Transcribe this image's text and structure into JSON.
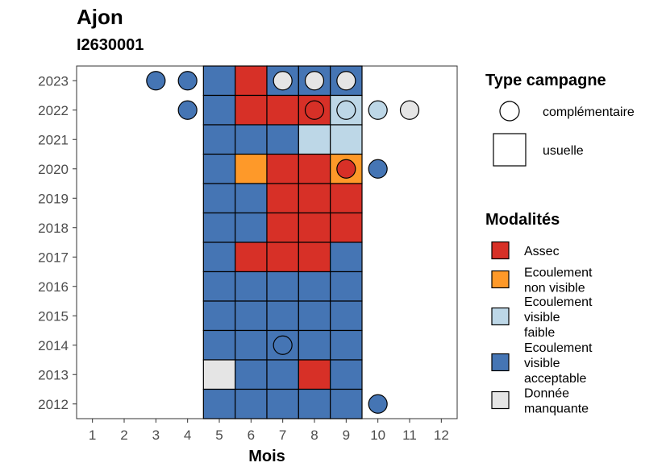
{
  "chart_data": {
    "type": "heatmap",
    "title": "Ajon",
    "subtitle": "I2630001",
    "xlabel": "Mois",
    "ylabel": "",
    "x_ticks": [
      1,
      2,
      3,
      4,
      5,
      6,
      7,
      8,
      9,
      10,
      11,
      12
    ],
    "y_ticks": [
      2012,
      2013,
      2014,
      2015,
      2016,
      2017,
      2018,
      2019,
      2020,
      2021,
      2022,
      2023
    ],
    "xlim": [
      0.5,
      12.5
    ],
    "ylim": [
      2011.5,
      2023.5
    ],
    "grid": false,
    "legend_placement": "right",
    "legends": [
      {
        "title": "Type campagne",
        "entries": [
          {
            "label": "complémentaire",
            "shape": "circle"
          },
          {
            "label": "usuelle",
            "shape": "square"
          }
        ]
      },
      {
        "title": "Modalités",
        "entries": [
          {
            "label": [
              "Assec"
            ],
            "color": "#d73027"
          },
          {
            "label": [
              "Ecoulement",
              "non visible"
            ],
            "color": "#fe9929"
          },
          {
            "label": [
              "Ecoulement",
              "visible",
              "faible"
            ],
            "color": "#bdd7e7"
          },
          {
            "label": [
              "Ecoulement",
              "visible",
              "acceptable"
            ],
            "color": "#4575b4"
          },
          {
            "label": [
              "Donnée",
              "manquante"
            ],
            "color": "#e5e5e5"
          }
        ]
      }
    ],
    "categories": [
      "Assec",
      "Ecoulement non visible",
      "Ecoulement visible faible",
      "Ecoulement visible acceptable",
      "Donnée manquante"
    ],
    "colors": {
      "Assec": "#d73027",
      "Ecoulement non visible": "#fe9929",
      "Ecoulement visible faible": "#bdd7e7",
      "Ecoulement visible acceptable": "#4575b4",
      "Donnée manquante": "#e5e5e5"
    },
    "usuelle": [
      {
        "year": 2023,
        "month": 5,
        "value": "Ecoulement visible acceptable"
      },
      {
        "year": 2023,
        "month": 6,
        "value": "Assec"
      },
      {
        "year": 2023,
        "month": 7,
        "value": "Ecoulement visible acceptable"
      },
      {
        "year": 2023,
        "month": 8,
        "value": "Ecoulement visible acceptable"
      },
      {
        "year": 2023,
        "month": 9,
        "value": "Ecoulement visible acceptable"
      },
      {
        "year": 2022,
        "month": 5,
        "value": "Ecoulement visible acceptable"
      },
      {
        "year": 2022,
        "month": 6,
        "value": "Assec"
      },
      {
        "year": 2022,
        "month": 7,
        "value": "Assec"
      },
      {
        "year": 2022,
        "month": 8,
        "value": "Assec"
      },
      {
        "year": 2022,
        "month": 9,
        "value": "Ecoulement visible faible"
      },
      {
        "year": 2021,
        "month": 5,
        "value": "Ecoulement visible acceptable"
      },
      {
        "year": 2021,
        "month": 6,
        "value": "Ecoulement visible acceptable"
      },
      {
        "year": 2021,
        "month": 7,
        "value": "Ecoulement visible acceptable"
      },
      {
        "year": 2021,
        "month": 8,
        "value": "Ecoulement visible faible"
      },
      {
        "year": 2021,
        "month": 9,
        "value": "Ecoulement visible faible"
      },
      {
        "year": 2020,
        "month": 5,
        "value": "Ecoulement visible acceptable"
      },
      {
        "year": 2020,
        "month": 6,
        "value": "Ecoulement non visible"
      },
      {
        "year": 2020,
        "month": 7,
        "value": "Assec"
      },
      {
        "year": 2020,
        "month": 8,
        "value": "Assec"
      },
      {
        "year": 2020,
        "month": 9,
        "value": "Ecoulement non visible"
      },
      {
        "year": 2019,
        "month": 5,
        "value": "Ecoulement visible acceptable"
      },
      {
        "year": 2019,
        "month": 6,
        "value": "Ecoulement visible acceptable"
      },
      {
        "year": 2019,
        "month": 7,
        "value": "Assec"
      },
      {
        "year": 2019,
        "month": 8,
        "value": "Assec"
      },
      {
        "year": 2019,
        "month": 9,
        "value": "Assec"
      },
      {
        "year": 2018,
        "month": 5,
        "value": "Ecoulement visible acceptable"
      },
      {
        "year": 2018,
        "month": 6,
        "value": "Ecoulement visible acceptable"
      },
      {
        "year": 2018,
        "month": 7,
        "value": "Assec"
      },
      {
        "year": 2018,
        "month": 8,
        "value": "Assec"
      },
      {
        "year": 2018,
        "month": 9,
        "value": "Assec"
      },
      {
        "year": 2017,
        "month": 5,
        "value": "Ecoulement visible acceptable"
      },
      {
        "year": 2017,
        "month": 6,
        "value": "Assec"
      },
      {
        "year": 2017,
        "month": 7,
        "value": "Assec"
      },
      {
        "year": 2017,
        "month": 8,
        "value": "Assec"
      },
      {
        "year": 2017,
        "month": 9,
        "value": "Ecoulement visible acceptable"
      },
      {
        "year": 2016,
        "month": 5,
        "value": "Ecoulement visible acceptable"
      },
      {
        "year": 2016,
        "month": 6,
        "value": "Ecoulement visible acceptable"
      },
      {
        "year": 2016,
        "month": 7,
        "value": "Ecoulement visible acceptable"
      },
      {
        "year": 2016,
        "month": 8,
        "value": "Ecoulement visible acceptable"
      },
      {
        "year": 2016,
        "month": 9,
        "value": "Ecoulement visible acceptable"
      },
      {
        "year": 2015,
        "month": 5,
        "value": "Ecoulement visible acceptable"
      },
      {
        "year": 2015,
        "month": 6,
        "value": "Ecoulement visible acceptable"
      },
      {
        "year": 2015,
        "month": 7,
        "value": "Ecoulement visible acceptable"
      },
      {
        "year": 2015,
        "month": 8,
        "value": "Ecoulement visible acceptable"
      },
      {
        "year": 2015,
        "month": 9,
        "value": "Ecoulement visible acceptable"
      },
      {
        "year": 2014,
        "month": 5,
        "value": "Ecoulement visible acceptable"
      },
      {
        "year": 2014,
        "month": 6,
        "value": "Ecoulement visible acceptable"
      },
      {
        "year": 2014,
        "month": 7,
        "value": "Ecoulement visible acceptable"
      },
      {
        "year": 2014,
        "month": 8,
        "value": "Ecoulement visible acceptable"
      },
      {
        "year": 2014,
        "month": 9,
        "value": "Ecoulement visible acceptable"
      },
      {
        "year": 2013,
        "month": 5,
        "value": "Donnée manquante"
      },
      {
        "year": 2013,
        "month": 6,
        "value": "Ecoulement visible acceptable"
      },
      {
        "year": 2013,
        "month": 7,
        "value": "Ecoulement visible acceptable"
      },
      {
        "year": 2013,
        "month": 8,
        "value": "Assec"
      },
      {
        "year": 2013,
        "month": 9,
        "value": "Ecoulement visible acceptable"
      },
      {
        "year": 2012,
        "month": 5,
        "value": "Ecoulement visible acceptable"
      },
      {
        "year": 2012,
        "month": 6,
        "value": "Ecoulement visible acceptable"
      },
      {
        "year": 2012,
        "month": 7,
        "value": "Ecoulement visible acceptable"
      },
      {
        "year": 2012,
        "month": 8,
        "value": "Ecoulement visible acceptable"
      },
      {
        "year": 2012,
        "month": 9,
        "value": "Ecoulement visible acceptable"
      }
    ],
    "complementaire": [
      {
        "year": 2023,
        "month": 3,
        "value": "Ecoulement visible acceptable"
      },
      {
        "year": 2023,
        "month": 4,
        "value": "Ecoulement visible acceptable"
      },
      {
        "year": 2023,
        "month": 7,
        "value": "Donnée manquante"
      },
      {
        "year": 2023,
        "month": 8,
        "value": "Donnée manquante"
      },
      {
        "year": 2023,
        "month": 9,
        "value": "Donnée manquante"
      },
      {
        "year": 2022,
        "month": 4,
        "value": "Ecoulement visible acceptable"
      },
      {
        "year": 2022,
        "month": 8,
        "value": "Assec"
      },
      {
        "year": 2022,
        "month": 9,
        "value": "Ecoulement visible faible"
      },
      {
        "year": 2022,
        "month": 10,
        "value": "Ecoulement visible faible"
      },
      {
        "year": 2022,
        "month": 11,
        "value": "Donnée manquante"
      },
      {
        "year": 2020,
        "month": 9,
        "value": "Assec"
      },
      {
        "year": 2020,
        "month": 10,
        "value": "Ecoulement visible acceptable"
      },
      {
        "year": 2014,
        "month": 7,
        "value": "Ecoulement visible acceptable"
      },
      {
        "year": 2012,
        "month": 10,
        "value": "Ecoulement visible acceptable"
      }
    ]
  }
}
